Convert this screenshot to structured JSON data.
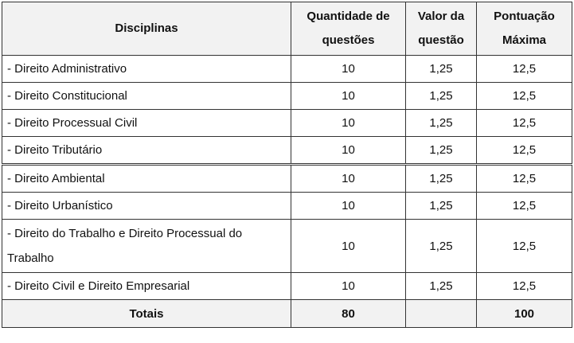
{
  "headers": {
    "disciplinas": "Disciplinas",
    "quantidade": "Quantidade de questões",
    "valor": "Valor da questão",
    "pontuacao": "Pontuação Máxima"
  },
  "rows": [
    {
      "disciplina": "- Direito Administrativo",
      "quantidade": "10",
      "valor": "1,25",
      "pontuacao": "12,5"
    },
    {
      "disciplina": "- Direito Constitucional",
      "quantidade": "10",
      "valor": "1,25",
      "pontuacao": "12,5"
    },
    {
      "disciplina": "- Direito Processual Civil",
      "quantidade": "10",
      "valor": "1,25",
      "pontuacao": "12,5"
    },
    {
      "disciplina": "- Direito Tributário",
      "quantidade": "10",
      "valor": "1,25",
      "pontuacao": "12,5"
    },
    {
      "disciplina": "- Direito Ambiental",
      "quantidade": "10",
      "valor": "1,25",
      "pontuacao": "12,5"
    },
    {
      "disciplina": "- Direito Urbanístico",
      "quantidade": "10",
      "valor": "1,25",
      "pontuacao": "12,5"
    },
    {
      "disciplina": "- Direito do Trabalho e Direito Processual do Trabalho",
      "quantidade": "10",
      "valor": "1,25",
      "pontuacao": "12,5"
    },
    {
      "disciplina": "- Direito Civil e Direito Empresarial",
      "quantidade": "10",
      "valor": "1,25",
      "pontuacao": "12,5"
    }
  ],
  "totals": {
    "label": "Totais",
    "quantidade": "80",
    "valor": "",
    "pontuacao": "100"
  }
}
